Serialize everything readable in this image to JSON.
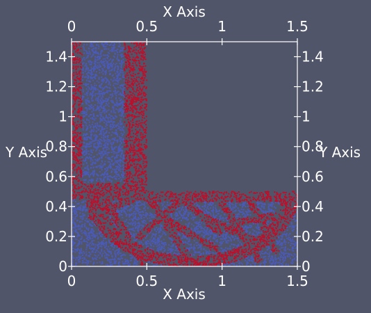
{
  "colors": {
    "background": "#515569",
    "axes": "#ffffff",
    "solid": "#4a5ab8",
    "boundary": "#c00d28"
  },
  "chart_data": {
    "type": "scatter",
    "title": "",
    "axes": {
      "top": {
        "label": "X Axis",
        "ticks": [
          "0",
          "0.5",
          "1",
          "1.5"
        ],
        "tick_values": [
          0,
          0.5,
          1,
          1.5
        ]
      },
      "bottom": {
        "label": "X Axis",
        "ticks": [
          "0",
          "0.5",
          "1",
          "1.5"
        ],
        "tick_values": [
          0,
          0.5,
          1,
          1.5
        ]
      },
      "left": {
        "label": "Y Axis",
        "ticks": [
          "0",
          "0.2",
          "0.4",
          "0.6",
          "0.8",
          "1",
          "1.2",
          "1.4"
        ],
        "tick_values": [
          0,
          0.2,
          0.4,
          0.6,
          0.8,
          1,
          1.2,
          1.4
        ]
      },
      "right": {
        "label": "Y Axis",
        "ticks": [
          "0",
          "0.2",
          "0.4",
          "0.6",
          "0.8",
          "1",
          "1.2",
          "1.4"
        ],
        "tick_values": [
          0,
          0.2,
          0.4,
          0.6,
          0.8,
          1,
          1.2,
          1.4
        ]
      }
    },
    "xlim": [
      0,
      1.5
    ],
    "ylim": [
      0,
      1.5
    ],
    "grid": false,
    "domain": {
      "shape": "L",
      "vertical_leg": {
        "x": [
          0,
          0.5
        ],
        "y": [
          0,
          1.5
        ]
      },
      "horizontal_leg": {
        "x": [
          0,
          1.5
        ],
        "y": [
          0,
          0.5
        ]
      }
    },
    "series": [
      {
        "color": "#4a5ab8"
      },
      {
        "color": "#c00d28"
      }
    ]
  }
}
